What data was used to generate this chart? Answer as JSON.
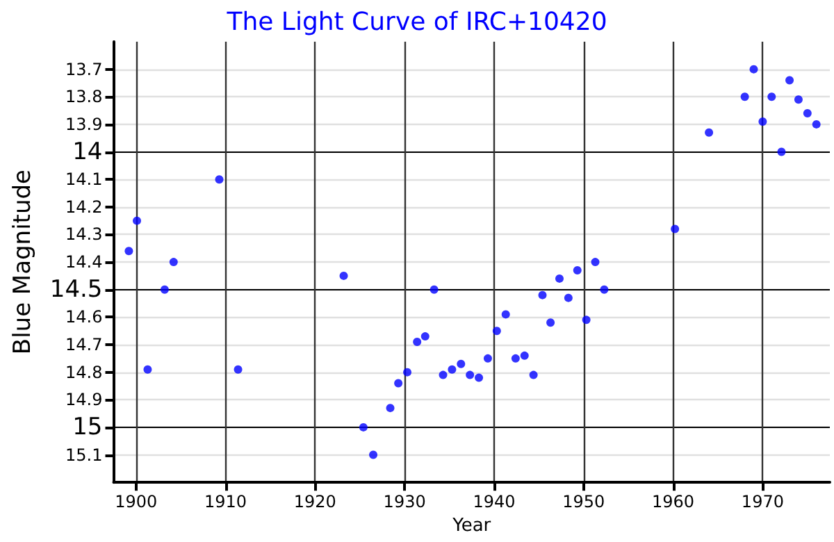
{
  "chart_data": {
    "type": "scatter",
    "title": "The Light Curve of IRC+10420",
    "xlabel": "Year",
    "ylabel": "Blue Magnitude",
    "x": [
      1899.2,
      1900.1,
      1901.3,
      1903.2,
      1904.2,
      1909.3,
      1911.4,
      1923.2,
      1925.4,
      1926.5,
      1928.4,
      1929.3,
      1930.3,
      1931.4,
      1932.3,
      1933.3,
      1934.3,
      1935.3,
      1936.3,
      1937.3,
      1938.3,
      1939.3,
      1940.3,
      1941.3,
      1942.4,
      1943.4,
      1944.4,
      1945.4,
      1946.3,
      1947.3,
      1948.3,
      1949.3,
      1950.3,
      1951.3,
      1952.3,
      1960.2,
      1964.0,
      1968.0,
      1969.0,
      1970.0,
      1971.0,
      1972.1,
      1973.0,
      1974.0,
      1975.0,
      1976.0
    ],
    "values": [
      14.36,
      14.25,
      14.79,
      14.5,
      14.4,
      14.1,
      14.79,
      14.45,
      15.0,
      15.1,
      14.93,
      14.84,
      14.8,
      14.69,
      14.67,
      14.5,
      14.81,
      14.79,
      14.77,
      14.81,
      14.82,
      14.75,
      14.65,
      14.59,
      14.75,
      14.74,
      14.81,
      14.52,
      14.62,
      14.46,
      14.53,
      14.43,
      14.61,
      14.4,
      14.5,
      14.28,
      13.93,
      13.8,
      13.7,
      13.89,
      13.8,
      14.0,
      13.74,
      13.81,
      13.86,
      13.9
    ],
    "color": "#0000ff",
    "marker": "circle",
    "xlim": [
      1897.5,
      1977.5
    ],
    "xticks": [
      1900,
      1910,
      1920,
      1930,
      1940,
      1950,
      1960,
      1970
    ],
    "ylim": [
      15.2,
      13.6
    ],
    "yticks": [
      13.7,
      13.8,
      13.9,
      14,
      14.1,
      14.2,
      14.3,
      14.4,
      14.5,
      14.6,
      14.7,
      14.8,
      14.9,
      15,
      15.1
    ],
    "grid": true
  }
}
